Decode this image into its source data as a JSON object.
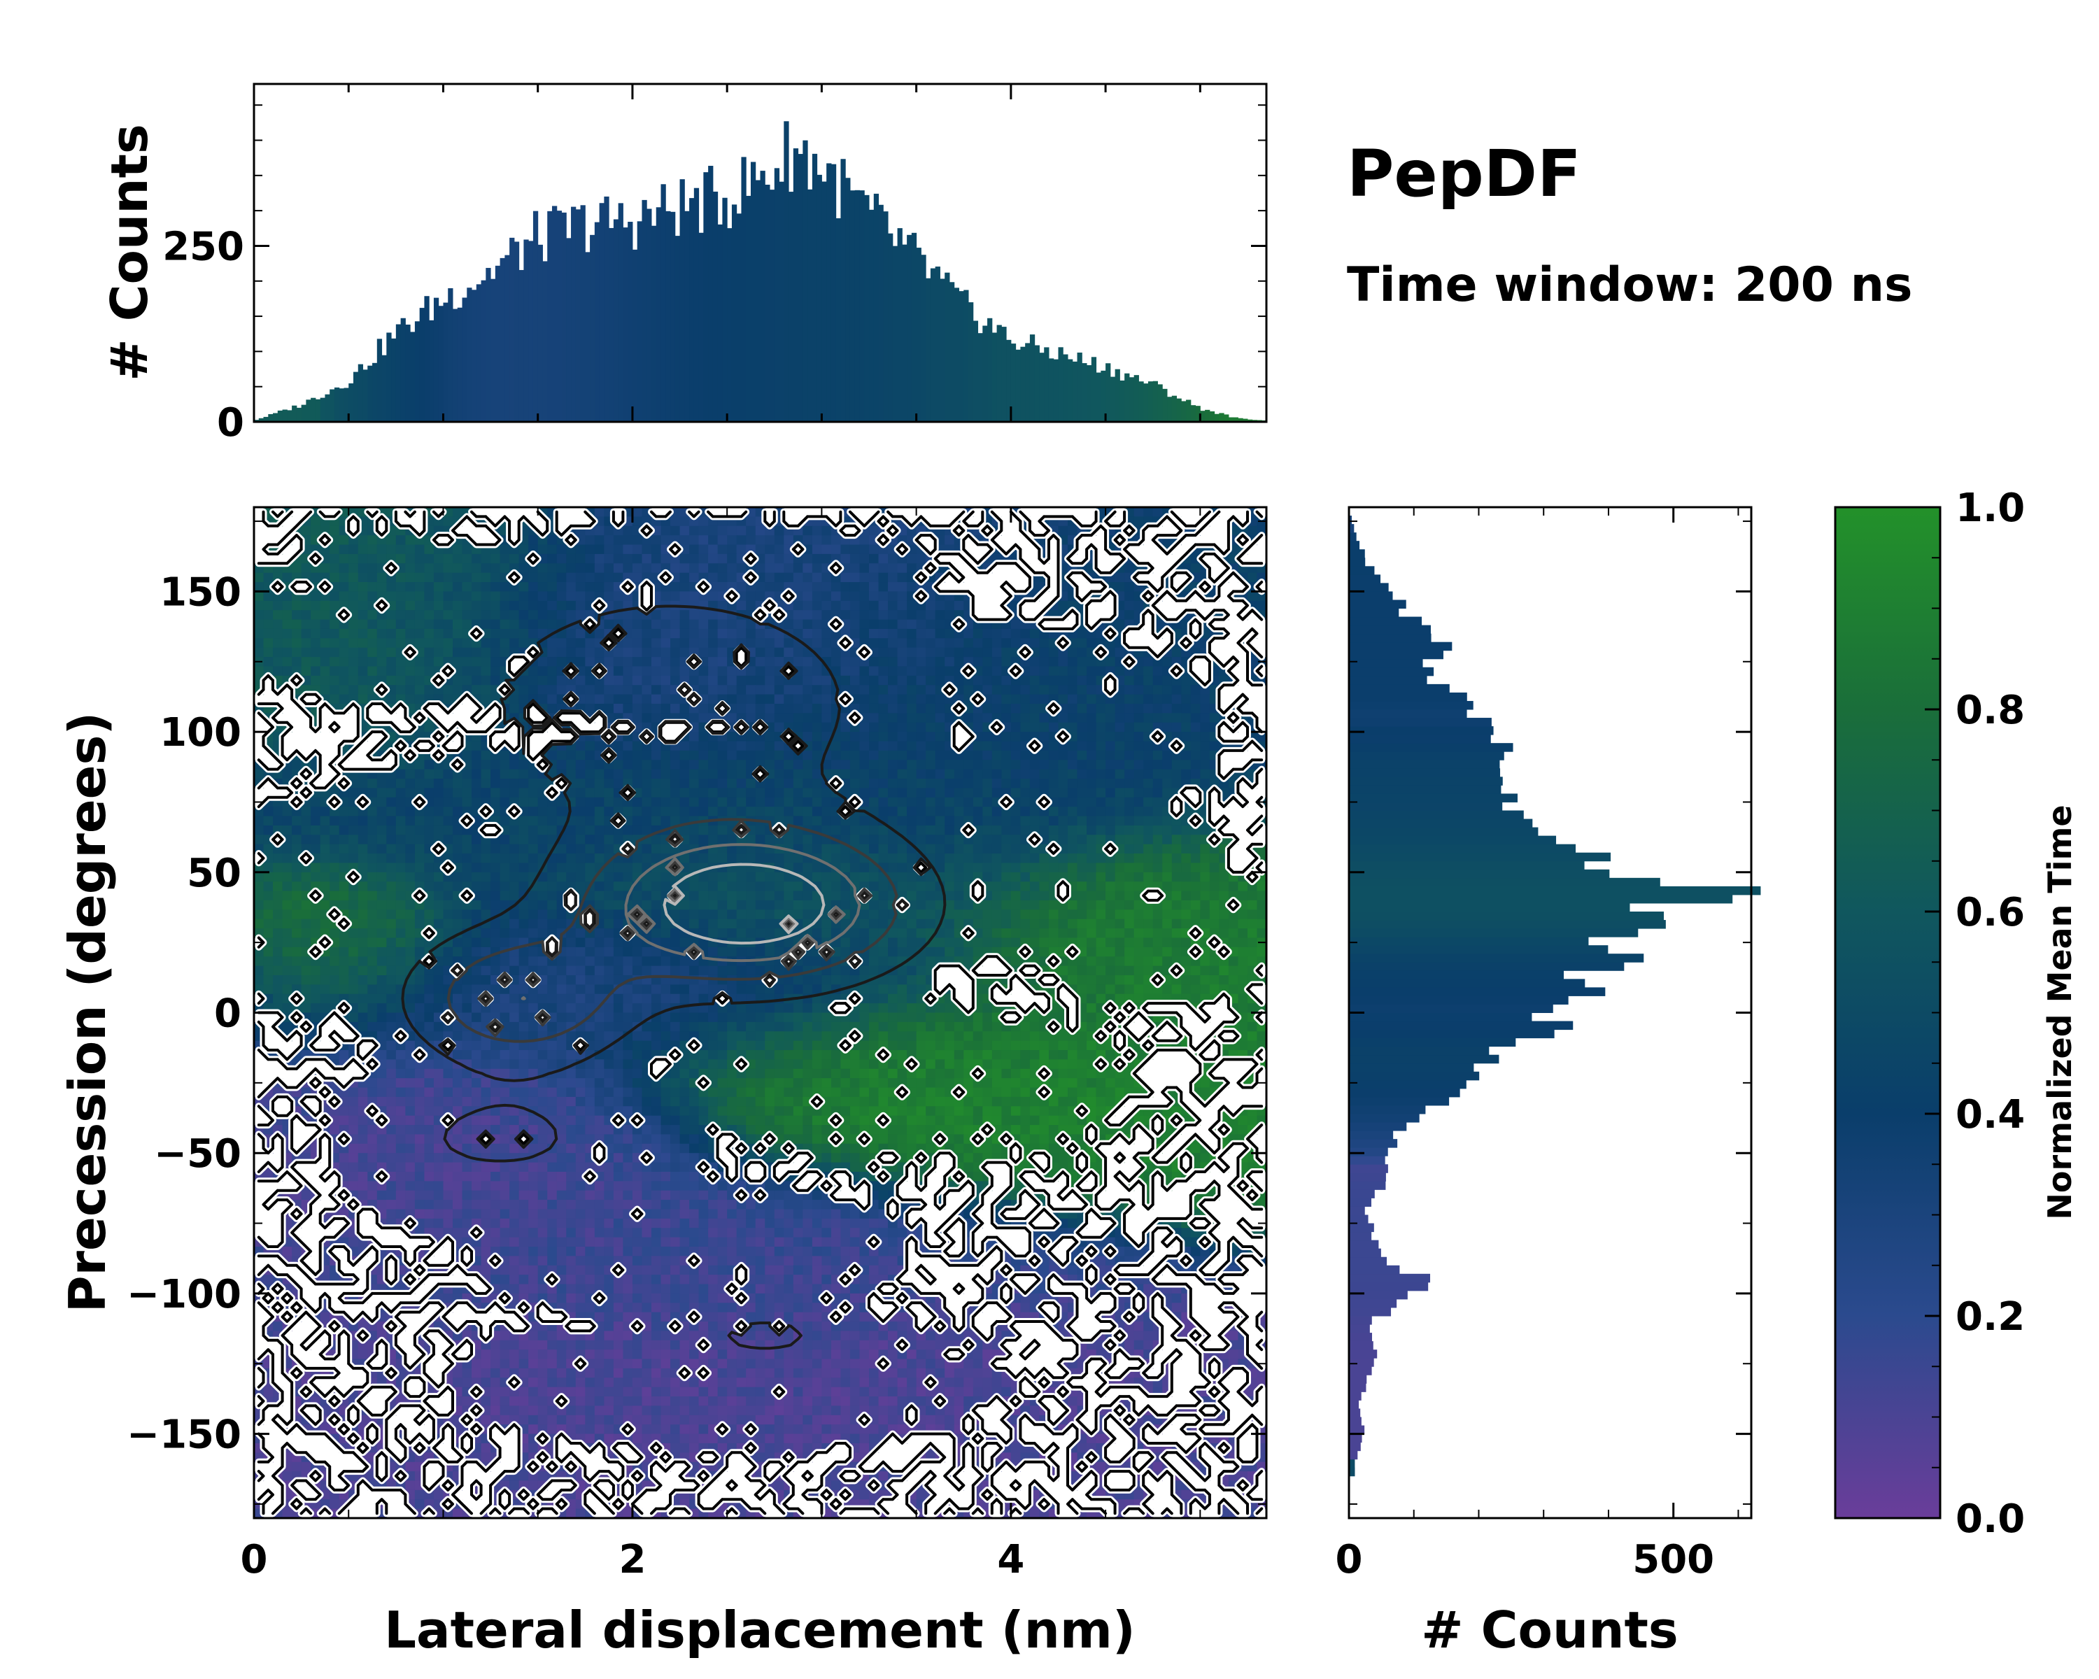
{
  "chart_data": [
    {
      "panel": "top-histogram",
      "type": "bar",
      "ylabel": "# Counts",
      "xlim": [
        0,
        5.35
      ],
      "ylim": [
        0,
        480
      ],
      "yticks": [
        0,
        250
      ],
      "ytick_labels": [
        "0",
        "250"
      ],
      "bin_width": 0.025,
      "profile_x": [
        0,
        0.25,
        0.5,
        0.75,
        1.0,
        1.25,
        1.5,
        1.75,
        2.0,
        2.25,
        2.5,
        2.75,
        2.85,
        3.0,
        3.15,
        3.3,
        3.5,
        3.75,
        4.0,
        4.25,
        4.5,
        4.75,
        5.0,
        5.2,
        5.35
      ],
      "profile_y": [
        2,
        25,
        60,
        130,
        180,
        220,
        270,
        290,
        295,
        315,
        330,
        370,
        400,
        375,
        330,
        290,
        240,
        170,
        120,
        100,
        80,
        55,
        20,
        5,
        2
      ]
    },
    {
      "panel": "main-2d-map",
      "type": "heatmap",
      "xlabel": "Lateral displacement (nm)",
      "ylabel": "Precession (degrees)",
      "xlim": [
        0,
        5.35
      ],
      "ylim": [
        -180,
        180
      ],
      "xticks": [
        0,
        2,
        4
      ],
      "xtick_labels": [
        "0",
        "2",
        "4"
      ],
      "yticks": [
        -150,
        -100,
        -50,
        0,
        50,
        100,
        150
      ],
      "ytick_labels": [
        "−150",
        "−100",
        "−50",
        "0",
        "50",
        "100",
        "150"
      ],
      "colorbar_label": "Normalized Mean Time",
      "regions": [
        {
          "cx": 0.7,
          "cy": 140,
          "rx": 0.8,
          "ry": 35,
          "t": 0.62
        },
        {
          "cx": 2.4,
          "cy": 135,
          "rx": 1.2,
          "ry": 35,
          "t": 0.3
        },
        {
          "cx": 3.8,
          "cy": 110,
          "rx": 1.1,
          "ry": 35,
          "t": 0.42
        },
        {
          "cx": 2.4,
          "cy": 65,
          "rx": 1.8,
          "ry": 28,
          "t": 0.45
        },
        {
          "cx": 0.5,
          "cy": 25,
          "rx": 0.5,
          "ry": 22,
          "t": 0.85
        },
        {
          "cx": 1.8,
          "cy": 10,
          "rx": 1.5,
          "ry": 25,
          "t": 0.3
        },
        {
          "cx": 2.8,
          "cy": 40,
          "rx": 1.0,
          "ry": 20,
          "t": 0.6
        },
        {
          "cx": 4.7,
          "cy": 30,
          "rx": 0.8,
          "ry": 25,
          "t": 0.88
        },
        {
          "cx": 3.5,
          "cy": -25,
          "rx": 1.1,
          "ry": 30,
          "t": 0.9
        },
        {
          "cx": 1.2,
          "cy": -50,
          "rx": 1.0,
          "ry": 30,
          "t": 0.12
        },
        {
          "cx": 2.5,
          "cy": -85,
          "rx": 1.1,
          "ry": 25,
          "t": 0.15
        },
        {
          "cx": 2.4,
          "cy": -135,
          "rx": 1.4,
          "ry": 25,
          "t": 0.1
        }
      ],
      "contour_levels": [
        0.18,
        0.38,
        0.6,
        0.82
      ],
      "density_peaks": [
        {
          "x": 2.6,
          "y": 38,
          "sx": 0.55,
          "sy": 18,
          "w": 1.0
        },
        {
          "x": 1.4,
          "y": 5,
          "sx": 0.4,
          "sy": 16,
          "w": 0.55
        },
        {
          "x": 2.2,
          "y": 110,
          "sx": 0.9,
          "sy": 35,
          "w": 0.28
        },
        {
          "x": 1.3,
          "y": -45,
          "sx": 0.5,
          "sy": 14,
          "w": 0.2
        },
        {
          "x": 2.7,
          "y": -115,
          "sx": 0.6,
          "sy": 15,
          "w": 0.18
        }
      ]
    },
    {
      "panel": "right-histogram",
      "type": "bar",
      "orientation": "horizontal",
      "xlabel": "# Counts",
      "xlim": [
        0,
        620
      ],
      "ylim": [
        -180,
        180
      ],
      "xticks": [
        0,
        500
      ],
      "xtick_labels": [
        "0",
        "500"
      ],
      "bin_width": 3,
      "profile_y": [
        -180,
        -160,
        -150,
        -140,
        -130,
        -120,
        -110,
        -100,
        -95,
        -90,
        -80,
        -70,
        -60,
        -50,
        -40,
        -30,
        -20,
        -10,
        0,
        10,
        20,
        30,
        40,
        45,
        50,
        60,
        70,
        80,
        90,
        100,
        110,
        120,
        130,
        140,
        150,
        160,
        170,
        180
      ],
      "profile_x": [
        0,
        10,
        25,
        15,
        30,
        40,
        35,
        110,
        125,
        60,
        40,
        25,
        55,
        60,
        85,
        150,
        190,
        280,
        330,
        360,
        420,
        440,
        520,
        580,
        460,
        300,
        290,
        230,
        240,
        220,
        190,
        120,
        150,
        100,
        60,
        30,
        10,
        0
      ]
    },
    {
      "panel": "colorbar",
      "type": "colorbar",
      "label": "Normalized Mean Time",
      "range": [
        0,
        1
      ],
      "ticks": [
        0.0,
        0.2,
        0.4,
        0.6,
        0.8,
        1.0
      ],
      "tick_labels": [
        "0.0",
        "0.2",
        "0.4",
        "0.6",
        "0.8",
        "1.0"
      ],
      "colors": [
        "#6a3d9a",
        "#2b4a8e",
        "#0a3e6b",
        "#10575e",
        "#1a6e3a",
        "#23912a"
      ]
    }
  ],
  "title": "PepDF",
  "subtitle": "Time window: 200 ns"
}
